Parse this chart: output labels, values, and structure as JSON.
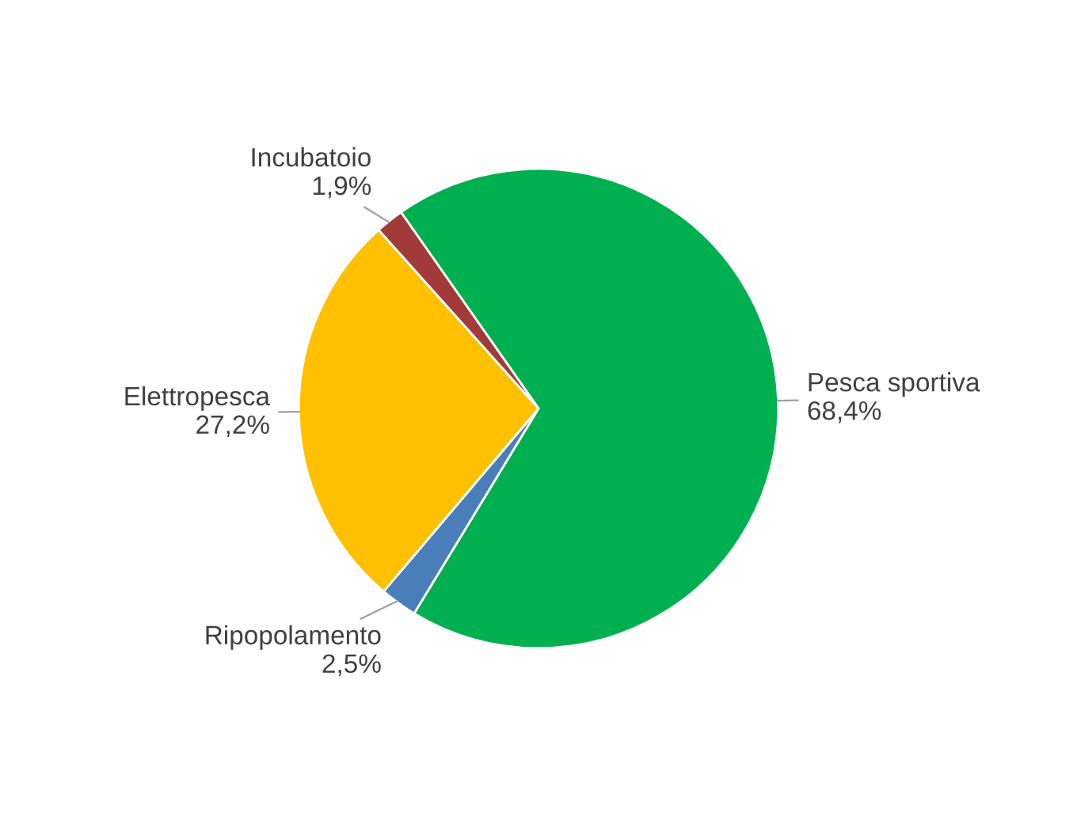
{
  "chart_data": {
    "type": "pie",
    "categories": [
      "Pesca sportiva",
      "Ripopolamento",
      "Elettropesca",
      "Incubatoio"
    ],
    "values": [
      68.4,
      2.5,
      27.2,
      1.9
    ],
    "value_labels": [
      "68,4%",
      "2,5%",
      "27,2%",
      "1,9%"
    ],
    "colors": [
      "#00b050",
      "#4a7ebb",
      "#ffc000",
      "#a33a3a"
    ],
    "legend": false
  }
}
